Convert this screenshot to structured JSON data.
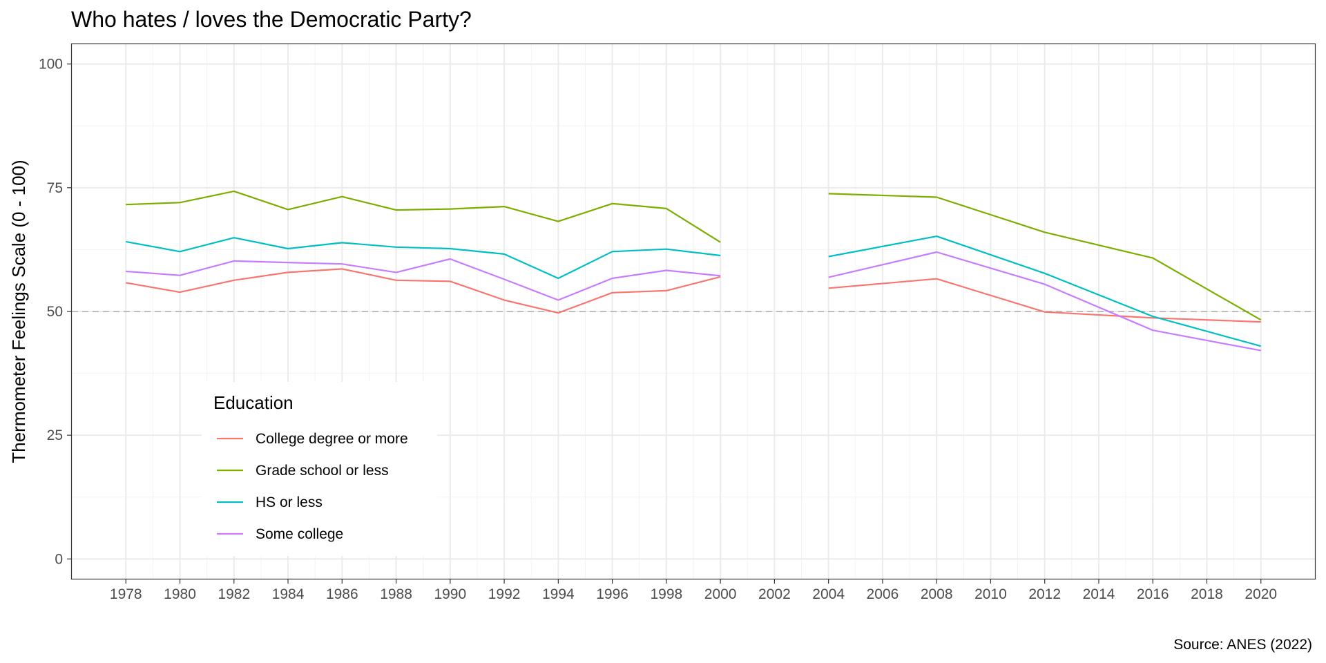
{
  "chart_data": {
    "type": "line",
    "title": "Who hates / loves the Democratic Party?",
    "ylabel": "Thermometer Feelings Scale (0 - 100)",
    "xlabel": "",
    "caption": "Source: ANES (2022)",
    "xlim": [
      1976,
      2022
    ],
    "ylim": [
      -4,
      104
    ],
    "x_ticks": [
      1978,
      1980,
      1982,
      1984,
      1986,
      1988,
      1990,
      1992,
      1994,
      1996,
      1998,
      2000,
      2002,
      2004,
      2006,
      2008,
      2010,
      2012,
      2014,
      2016,
      2018,
      2020
    ],
    "x_tick_labels": [
      "1978",
      "1980",
      "1982",
      "1984",
      "1986",
      "1988",
      "1990",
      "1992",
      "1994",
      "1996",
      "1998",
      "2000",
      "2002",
      "2004",
      "2006",
      "2008",
      "2010",
      "2012",
      "2014",
      "2016",
      "2018",
      "2020"
    ],
    "y_ticks": [
      0,
      25,
      50,
      75,
      100
    ],
    "y_tick_labels": [
      "0",
      "25",
      "50",
      "75",
      "100"
    ],
    "reference_line": {
      "y": 50,
      "style": "dashed",
      "color": "#bdbdbd"
    },
    "grid": true,
    "legend": {
      "title": "Education",
      "position": "bottom-left inside"
    },
    "segments": [
      [
        1978,
        1980,
        1982,
        1984,
        1986,
        1988,
        1990,
        1992,
        1994,
        1996,
        1998,
        2000
      ],
      [
        2004,
        2008,
        2012,
        2016,
        2020
      ]
    ],
    "series": [
      {
        "name": "College degree or more",
        "color": "#F8766D",
        "values": [
          [
            55.8,
            53.9,
            56.3,
            57.9,
            58.6,
            56.3,
            56.1,
            52.3,
            49.7,
            53.8,
            54.2,
            57.0
          ],
          [
            54.7,
            56.6,
            49.9,
            48.7,
            47.9
          ]
        ]
      },
      {
        "name": "Grade school or less",
        "color": "#7CAE00",
        "values": [
          [
            71.6,
            72.0,
            74.3,
            70.6,
            73.2,
            70.5,
            70.7,
            71.2,
            68.2,
            71.8,
            70.8,
            64.0
          ],
          [
            73.8,
            73.1,
            66.0,
            60.8,
            48.3
          ]
        ]
      },
      {
        "name": "HS or less",
        "color": "#00BFC4",
        "values": [
          [
            64.1,
            62.1,
            64.9,
            62.7,
            63.9,
            63.0,
            62.7,
            61.6,
            56.7,
            62.1,
            62.6,
            61.3
          ],
          [
            61.1,
            65.2,
            57.7,
            49.0,
            43.0
          ]
        ]
      },
      {
        "name": "Some college",
        "color": "#C77CFF",
        "values": [
          [
            58.1,
            57.3,
            60.2,
            59.9,
            59.6,
            57.9,
            60.6,
            56.5,
            52.3,
            56.7,
            58.3,
            57.2
          ],
          [
            56.9,
            62.0,
            55.5,
            46.2,
            42.1
          ]
        ]
      }
    ]
  }
}
